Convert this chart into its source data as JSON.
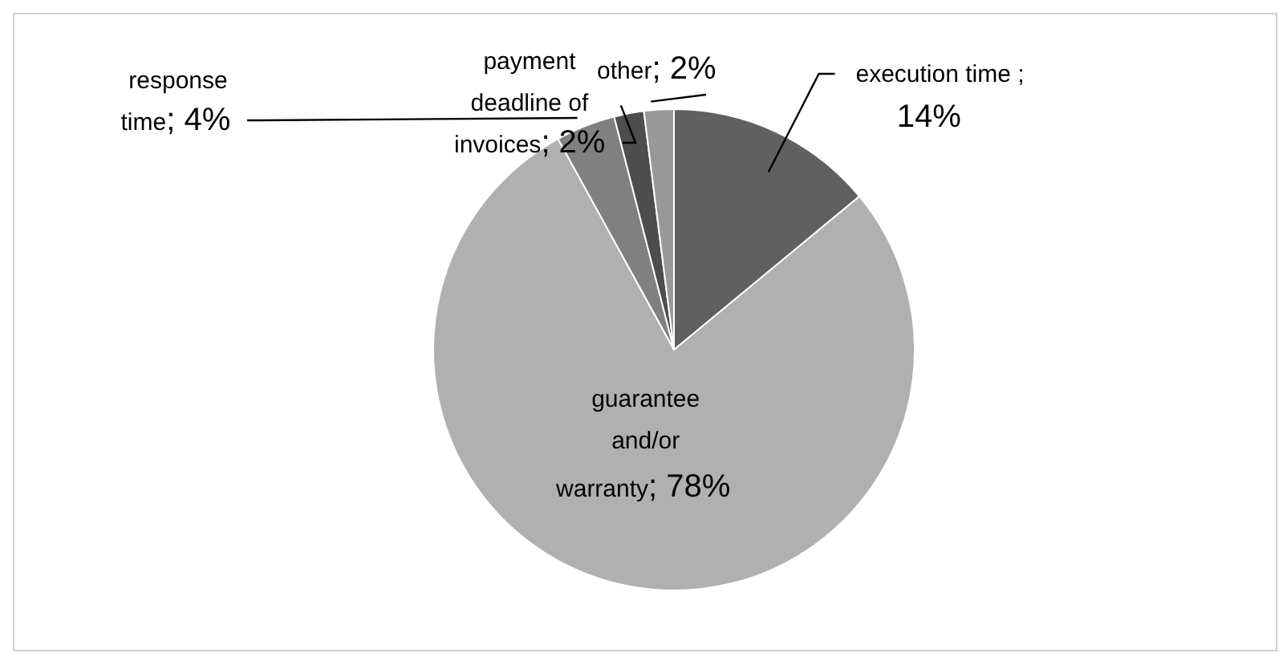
{
  "chart_data": {
    "type": "pie",
    "categories": [
      "execution time ",
      "guarantee and/or warranty",
      "response time",
      "payment deadline of invoices",
      "other"
    ],
    "values": [
      14,
      78,
      4,
      2,
      2
    ],
    "value_labels": [
      "; 14%",
      "; 78%",
      "; 4%",
      "; 2%",
      "; 2%"
    ],
    "colors": [
      "#606060",
      "#b0b0b0",
      "#808080",
      "#4d4d4d",
      "#999999"
    ]
  }
}
